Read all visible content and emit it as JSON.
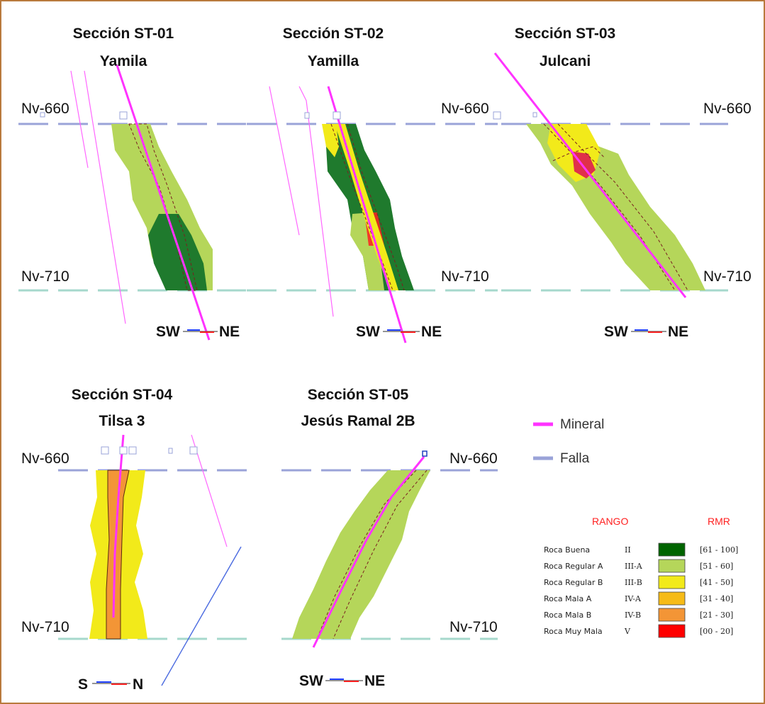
{
  "sections": [
    {
      "title": "Sección ST-01",
      "name": "Yamila",
      "top_level": "Nv-660",
      "bottom_level": "Nv-710",
      "dir_left": "SW",
      "dir_right": "NE"
    },
    {
      "title": "Sección ST-02",
      "name": "Yamilla",
      "top_level": "Nv-660",
      "bottom_level": "Nv-710",
      "dir_left": "SW",
      "dir_right": "NE"
    },
    {
      "title": "Sección ST-03",
      "name": "Julcani",
      "top_level": "Nv-660",
      "top_level_right": "Nv-660",
      "bottom_level": "Nv-710",
      "bottom_level_right": "Nv-710",
      "dir_left": "SW",
      "dir_right": "NE"
    },
    {
      "title": "Sección ST-04",
      "name": "Tilsa 3",
      "top_level": "Nv-660",
      "bottom_level": "Nv-710",
      "dir_left": "S",
      "dir_right": "N"
    },
    {
      "title": "Sección ST-05",
      "name": "Jesús Ramal 2B",
      "top_level": "Nv-660",
      "bottom_level": "Nv-710",
      "dir_left": "SW",
      "dir_right": "NE"
    }
  ],
  "legend": {
    "mineral_label": "Mineral",
    "falla_label": "Falla",
    "rango_header": "RANGO",
    "rmr_header": "RMR",
    "rows": [
      {
        "name": "Roca Buena",
        "code": "II",
        "rmr": "[61 - 100]",
        "color": "#006400"
      },
      {
        "name": "Roca Regular A",
        "code": "III-A",
        "rmr": "[51 - 60]",
        "color": "#b5d65a"
      },
      {
        "name": "Roca Regular B",
        "code": "III-B",
        "rmr": "[41 - 50]",
        "color": "#f2ea1a"
      },
      {
        "name": "Roca Mala A",
        "code": "IV-A",
        "rmr": "[31 - 40]",
        "color": "#f6bb17"
      },
      {
        "name": "Roca Mala B",
        "code": "IV-B",
        "rmr": "[21 - 30]",
        "color": "#f39536"
      },
      {
        "name": "Roca Muy Mala",
        "code": "V",
        "rmr": "[00 - 20]",
        "color": "#ff0000"
      }
    ]
  },
  "colors": {
    "mineral": "#ff33ff",
    "falla": "#9aa3d8",
    "level_bottom": "#a6d8cc",
    "frame": "#b97a3d"
  }
}
